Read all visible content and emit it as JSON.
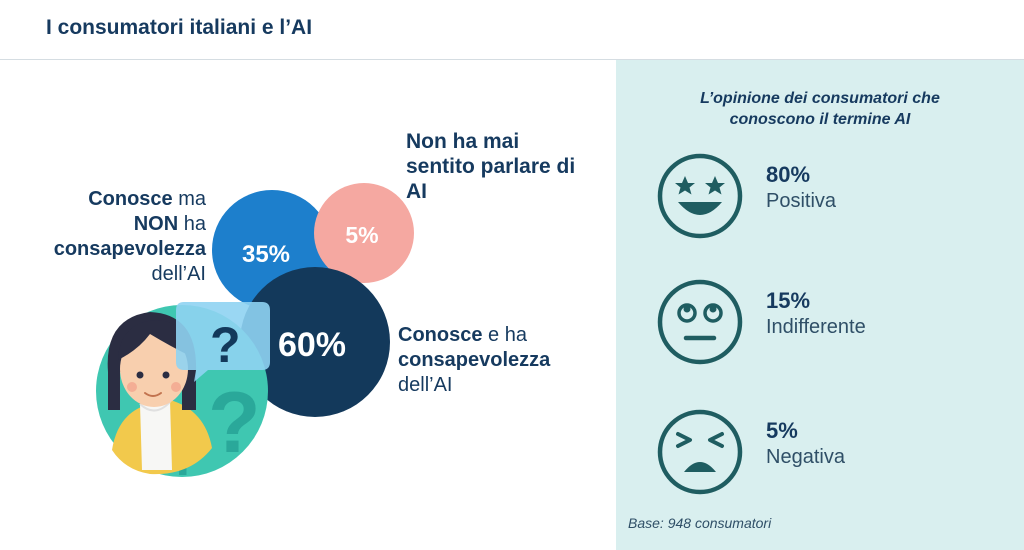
{
  "header": {
    "title": "I consumatori italiani e l’AI"
  },
  "chart_data": {
    "type": "bubble",
    "title": "I consumatori italiani e l’AI",
    "series": [
      {
        "name": "Conosce e ha consapevolezza dell’AI",
        "value": 60,
        "label": "60%",
        "color": "#13395b"
      },
      {
        "name": "Conosce ma NON ha consapevolezza dell’AI",
        "value": 35,
        "label": "35%",
        "color": "#1d7fcc"
      },
      {
        "name": "Non ha mai sentito parlare di AI",
        "value": 5,
        "label": "5%",
        "color": "#f5a8a1"
      }
    ]
  },
  "labels": {
    "aware_not": {
      "w1": "Conosce",
      "w2": " ma",
      "w3": "NON",
      "w4": " ha",
      "w5": "consapevolezza",
      "w6": "dell’AI"
    },
    "never": {
      "text": "Non ha mai sentito parlare di AI"
    },
    "know": {
      "w1": "Conosce",
      "w2": " e ha",
      "w3": "consapevolezza",
      "w4": "dell’AI"
    }
  },
  "opinions": {
    "title": "L’opinione dei consumatori che conoscono il termine AI",
    "items": [
      {
        "pct": "80%",
        "label": "Positiva",
        "icon": "star-eyes-face-icon",
        "value": 80
      },
      {
        "pct": "15%",
        "label": "Indifferente",
        "icon": "eye-roll-face-icon",
        "value": 15
      },
      {
        "pct": "5%",
        "label": "Negativa",
        "icon": "frown-face-icon",
        "value": 5
      }
    ],
    "base": "Base: 948 consumatori"
  },
  "colors": {
    "navy": "#13395b",
    "blue": "#1d7fcc",
    "pink": "#f5a8a1",
    "panel_bg": "#d9efef",
    "face_stroke": "#1f5d61"
  }
}
